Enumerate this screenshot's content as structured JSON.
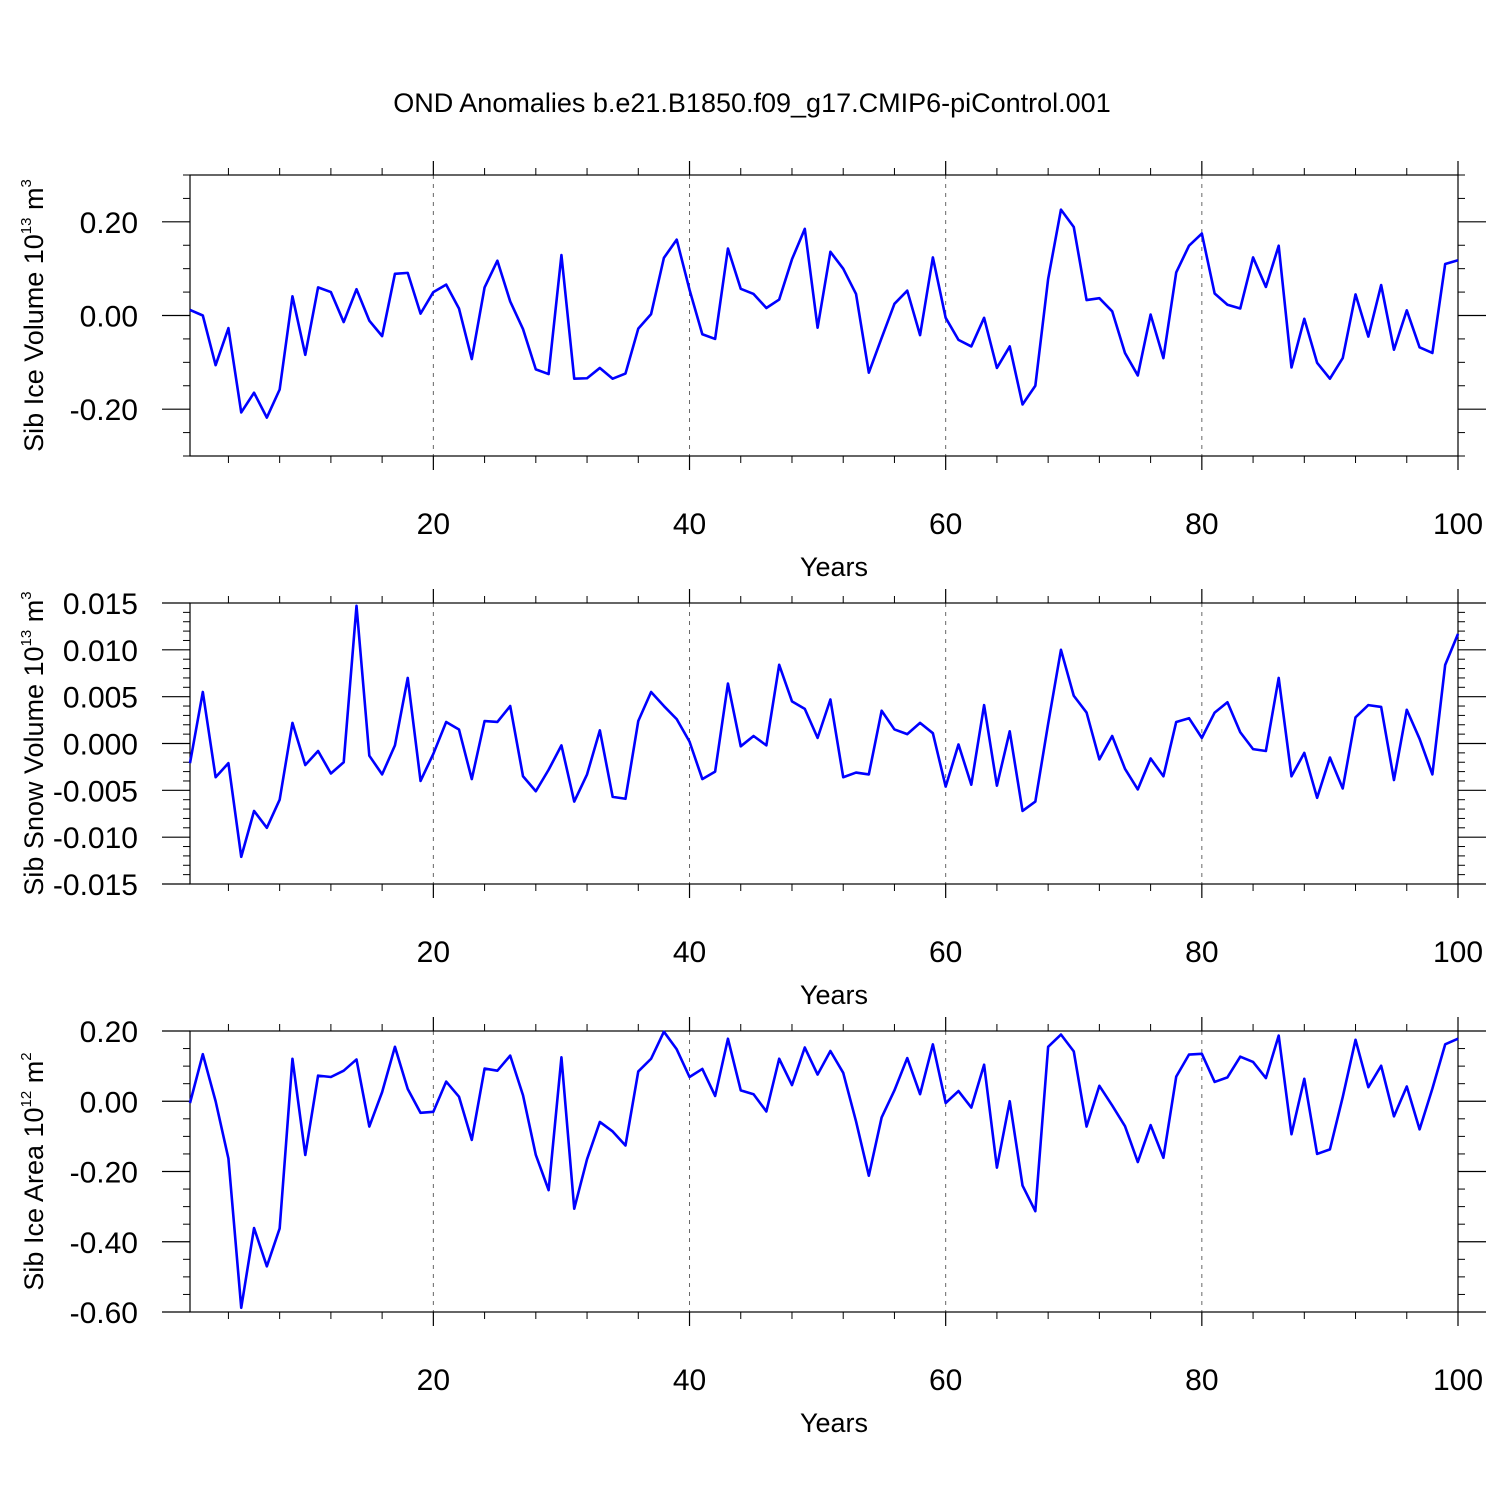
{
  "title": "OND Anomalies b.e21.B1850.f09_g17.CMIP6-piControl.001",
  "colors": {
    "line": "#0000ff",
    "axis": "#000000",
    "grid": "#000000"
  },
  "chart_data": [
    {
      "type": "line",
      "xlabel": "Years",
      "ylabel_parts": {
        "base": "Sib Ice Volume 10",
        "exp": "13",
        "unit": " m",
        "unit_exp": "3"
      },
      "xlim": [
        1,
        100
      ],
      "ylim": [
        -0.3,
        0.3
      ],
      "xticks": [
        20,
        40,
        60,
        80,
        100
      ],
      "xtick_labels": [
        "20",
        "40",
        "60",
        "80",
        "100"
      ],
      "yticks": [
        -0.2,
        0.0,
        0.2
      ],
      "ytick_labels": [
        "-0.20",
        "0.00",
        "0.20"
      ],
      "x_minor_step": 4,
      "y_minor_step": 0.05,
      "grid_x": [
        20,
        40,
        60,
        80
      ],
      "series": [
        {
          "name": "Sib Ice Volume",
          "values": [
            0.012,
            0.0,
            -0.106,
            -0.027,
            -0.207,
            -0.165,
            -0.218,
            -0.158,
            0.041,
            -0.084,
            0.06,
            0.05,
            -0.014,
            0.056,
            -0.011,
            -0.044,
            0.089,
            0.091,
            0.004,
            0.05,
            0.066,
            0.015,
            -0.093,
            0.06,
            0.117,
            0.03,
            -0.029,
            -0.115,
            -0.125,
            0.129,
            -0.135,
            -0.134,
            -0.112,
            -0.135,
            -0.124,
            -0.028,
            0.003,
            0.123,
            0.162,
            0.055,
            -0.04,
            -0.05,
            0.143,
            0.057,
            0.046,
            0.016,
            0.034,
            0.12,
            0.185,
            -0.026,
            0.136,
            0.1,
            0.046,
            -0.122,
            -0.048,
            0.025,
            0.053,
            -0.042,
            0.124,
            -0.005,
            -0.052,
            -0.066,
            -0.005,
            -0.112,
            -0.066,
            -0.19,
            -0.15,
            0.078,
            0.226,
            0.189,
            0.033,
            0.037,
            0.009,
            -0.08,
            -0.128,
            0.002,
            -0.091,
            0.092,
            0.149,
            0.175,
            0.047,
            0.023,
            0.015,
            0.124,
            0.061,
            0.149,
            -0.111,
            -0.007,
            -0.101,
            -0.135,
            -0.091,
            0.045,
            -0.045,
            0.065,
            -0.073,
            0.011,
            -0.068,
            -0.08,
            0.11,
            0.118
          ]
        }
      ]
    },
    {
      "type": "line",
      "xlabel": "Years",
      "ylabel_parts": {
        "base": "Sib Snow Volume 10",
        "exp": "13",
        "unit": " m",
        "unit_exp": "3"
      },
      "xlim": [
        1,
        100
      ],
      "ylim": [
        -0.015,
        0.015
      ],
      "xticks": [
        20,
        40,
        60,
        80,
        100
      ],
      "xtick_labels": [
        "20",
        "40",
        "60",
        "80",
        "100"
      ],
      "yticks": [
        -0.015,
        -0.01,
        -0.005,
        0.0,
        0.005,
        0.01,
        0.015
      ],
      "ytick_labels": [
        "-0.015",
        "-0.010",
        "-0.005",
        "0.000",
        "0.005",
        "0.010",
        "0.015"
      ],
      "x_minor_step": 4,
      "y_minor_step": 0.001,
      "grid_x": [
        20,
        40,
        60,
        80
      ],
      "series": [
        {
          "name": "Sib Snow Volume",
          "values": [
            -0.0021,
            0.0055,
            -0.0036,
            -0.0021,
            -0.0121,
            -0.0072,
            -0.009,
            -0.006,
            0.0022,
            -0.0023,
            -0.0008,
            -0.0032,
            -0.002,
            0.0147,
            -0.0013,
            -0.0033,
            -0.0002,
            0.007,
            -0.004,
            -0.0011,
            0.0023,
            0.0015,
            -0.0038,
            0.0024,
            0.0023,
            0.004,
            -0.0035,
            -0.0051,
            -0.0028,
            -0.0002,
            -0.0062,
            -0.0033,
            0.0014,
            -0.0057,
            -0.0059,
            0.0024,
            0.0055,
            0.004,
            0.0026,
            0.0002,
            -0.0038,
            -0.003,
            0.0064,
            -0.0003,
            0.0008,
            -0.0002,
            0.0084,
            0.0045,
            0.0037,
            0.0006,
            0.0047,
            -0.0036,
            -0.0031,
            -0.0033,
            0.0035,
            0.0015,
            0.001,
            0.0022,
            0.0011,
            -0.0046,
            -0.0001,
            -0.0044,
            0.0041,
            -0.0045,
            0.0013,
            -0.0072,
            -0.0062,
            0.0021,
            0.01,
            0.0051,
            0.0033,
            -0.0017,
            0.0008,
            -0.0027,
            -0.0049,
            -0.0016,
            -0.0035,
            0.0023,
            0.0027,
            0.0006,
            0.0033,
            0.0044,
            0.0012,
            -0.0006,
            -0.0008,
            0.007,
            -0.0035,
            -0.001,
            -0.0058,
            -0.0015,
            -0.0048,
            0.0028,
            0.0041,
            0.0039,
            -0.0039,
            0.0036,
            0.0005,
            -0.0033,
            0.0084,
            0.0117
          ]
        }
      ]
    },
    {
      "type": "line",
      "xlabel": "Years",
      "ylabel_parts": {
        "base": "Sib Ice Area 10",
        "exp": "12",
        "unit": " m",
        "unit_exp": "2"
      },
      "xlim": [
        1,
        100
      ],
      "ylim": [
        -0.6,
        0.2
      ],
      "xticks": [
        20,
        40,
        60,
        80,
        100
      ],
      "xtick_labels": [
        "20",
        "40",
        "60",
        "80",
        "100"
      ],
      "yticks": [
        -0.6,
        -0.4,
        -0.2,
        0.0,
        0.2
      ],
      "ytick_labels": [
        "-0.60",
        "-0.40",
        "-0.20",
        "0.00",
        "0.20"
      ],
      "x_minor_step": 4,
      "y_minor_step": 0.05,
      "grid_x": [
        20,
        40,
        60,
        80
      ],
      "series": [
        {
          "name": "Sib Ice Area",
          "values": [
            -0.005,
            0.134,
            0.0,
            -0.163,
            -0.588,
            -0.361,
            -0.47,
            -0.362,
            0.121,
            -0.153,
            0.073,
            0.069,
            0.087,
            0.119,
            -0.072,
            0.026,
            0.155,
            0.035,
            -0.033,
            -0.03,
            0.056,
            0.013,
            -0.11,
            0.093,
            0.087,
            0.13,
            0.017,
            -0.153,
            -0.253,
            0.125,
            -0.306,
            -0.165,
            -0.059,
            -0.086,
            -0.126,
            0.085,
            0.121,
            0.198,
            0.148,
            0.069,
            0.092,
            0.015,
            0.178,
            0.031,
            0.02,
            -0.029,
            0.121,
            0.046,
            0.153,
            0.076,
            0.143,
            0.081,
            -0.057,
            -0.212,
            -0.046,
            0.031,
            0.123,
            0.02,
            0.162,
            -0.005,
            0.029,
            -0.018,
            0.104,
            -0.189,
            0.0,
            -0.24,
            -0.313,
            0.155,
            0.19,
            0.142,
            -0.072,
            0.044,
            -0.012,
            -0.071,
            -0.173,
            -0.068,
            -0.161,
            0.07,
            0.133,
            0.135,
            0.055,
            0.068,
            0.127,
            0.112,
            0.066,
            0.187,
            -0.094,
            0.064,
            -0.15,
            -0.137,
            0.012,
            0.175,
            0.04,
            0.101,
            -0.043,
            0.042,
            -0.08,
            0.036,
            0.162,
            0.178
          ]
        }
      ]
    }
  ]
}
